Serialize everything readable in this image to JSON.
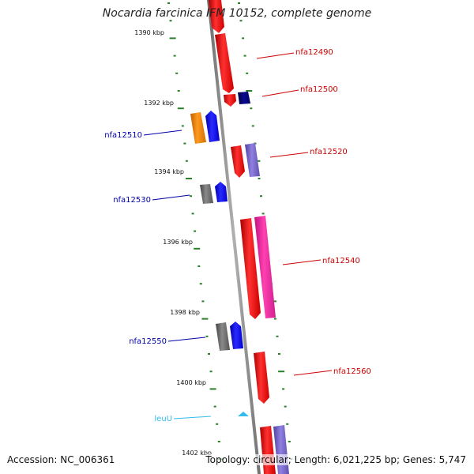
{
  "title": "Nocardia farcinica IFM 10152, complete genome",
  "accession": "Accession: NC_006361",
  "summary": "Topology: circular; Length: 6,021,225 bp; Genes: 5,747",
  "colors": {
    "forward_label": "#cc0000",
    "reverse_label": "#0000aa",
    "rna_label": "#33bbee",
    "tick": "#2a7f2a",
    "backbone": "#808080"
  },
  "ticks": [
    "1390 kbp",
    "1392 kbp",
    "1394 kbp",
    "1396 kbp",
    "1398 kbp",
    "1400 kbp",
    "1402 kbp"
  ],
  "genes": [
    {
      "name": "nfa12490",
      "strand": "forward"
    },
    {
      "name": "nfa12500",
      "strand": "forward"
    },
    {
      "name": "nfa12510",
      "strand": "reverse"
    },
    {
      "name": "nfa12520",
      "strand": "forward"
    },
    {
      "name": "nfa12530",
      "strand": "reverse"
    },
    {
      "name": "nfa12540",
      "strand": "forward"
    },
    {
      "name": "nfa12550",
      "strand": "reverse"
    },
    {
      "name": "nfa12560",
      "strand": "forward"
    },
    {
      "name": "leuU",
      "strand": "rna"
    }
  ]
}
